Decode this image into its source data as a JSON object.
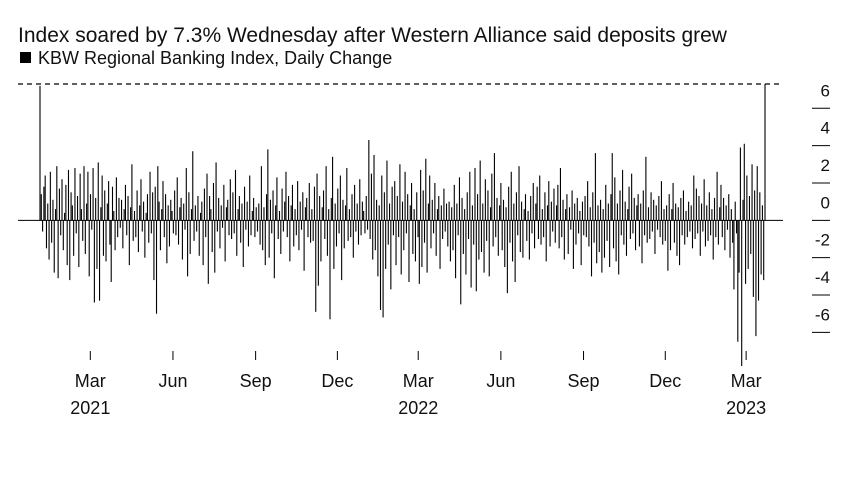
{
  "chart_data": {
    "type": "bar",
    "title": "Index soared by 7.3% Wednesday after Western Alliance said deposits grew",
    "series": [
      {
        "name": "KBW Regional Banking Index, Daily Change",
        "color": "#000000",
        "values": [
          7.2,
          1.4,
          -0.6,
          1.8,
          2.4,
          -1.5,
          0.9,
          -2.1,
          2.6,
          -1.2,
          1.1,
          -2.8,
          0.6,
          2.9,
          -3.1,
          1.7,
          -0.8,
          2.2,
          -1.6,
          0.4,
          1.9,
          -2.4,
          2.7,
          -3.2,
          1.5,
          0.8,
          -1.9,
          2.8,
          -0.7,
          1.3,
          -2.5,
          2.5,
          0.6,
          -1.1,
          2.9,
          -1.8,
          0.9,
          2.6,
          -3.0,
          1.4,
          -0.5,
          2.8,
          -4.4,
          1.2,
          -2.6,
          3.1,
          -4.3,
          0.7,
          2.4,
          -1.9,
          1.6,
          -2.2,
          0.9,
          2.1,
          -1.3,
          -3.3,
          1.8,
          0.5,
          -1.6,
          2.3,
          -0.9,
          1.2,
          -0.4,
          1.1,
          -1.5,
          0.6,
          1.9,
          -0.8,
          1.3,
          -2.4,
          0.7,
          3.0,
          -1.1,
          0.5,
          -0.9,
          1.6,
          -1.7,
          0.8,
          2.2,
          -0.6,
          1.0,
          -2.0,
          0.4,
          1.4,
          -1.2,
          2.6,
          -0.7,
          1.5,
          -3.2,
          1.8,
          -5.0,
          2.9,
          1.0,
          -1.6,
          0.6,
          2.1,
          -0.9,
          1.4,
          -2.3,
          0.8,
          -1.4,
          1.1,
          0.5,
          -0.7,
          1.6,
          -0.8,
          2.3,
          -1.3,
          0.7,
          1.2,
          -2.1,
          0.9,
          -0.5,
          2.8,
          -3.0,
          1.5,
          -1.8,
          0.6,
          3.7,
          -1.1,
          0.8,
          -0.6,
          1.3,
          -1.9,
          0.4,
          1.0,
          -2.4,
          1.7,
          -0.9,
          2.5,
          -3.4,
          1.3,
          0.6,
          -1.7,
          2.0,
          -2.8,
          3.1,
          -0.6,
          1.2,
          -1.5,
          0.8,
          -0.4,
          1.9,
          -2.2,
          0.7,
          1.1,
          -0.8,
          2.2,
          -1.0,
          1.5,
          -0.7,
          2.7,
          -1.9,
          0.6,
          1.3,
          -1.2,
          0.9,
          -2.5,
          1.8,
          -0.5,
          1.0,
          -1.4,
          2.4,
          -0.8,
          0.5,
          1.2,
          -0.9,
          0.7,
          -0.6,
          0.9,
          -1.3,
          2.9,
          -1.6,
          0.7,
          -2.4,
          1.4,
          3.8,
          -2.0,
          1.1,
          -0.7,
          1.6,
          -3.1,
          0.8,
          2.3,
          -1.0,
          0.5,
          -1.8,
          1.7,
          -0.6,
          1.0,
          2.6,
          -0.9,
          1.3,
          -2.2,
          0.8,
          1.9,
          -1.4,
          0.6,
          -0.8,
          2.1,
          -1.6,
          1.0,
          -0.5,
          1.5,
          -2.7,
          0.7,
          1.2,
          -0.9,
          2.0,
          -1.2,
          0.6,
          -1.1,
          1.8,
          -4.9,
          2.5,
          -3.5,
          1.3,
          -2.2,
          0.7,
          1.6,
          -1.0,
          2.9,
          -1.9,
          0.6,
          -5.3,
          1.2,
          3.4,
          -2.6,
          0.9,
          -1.4,
          1.7,
          -0.7,
          2.4,
          -3.2,
          1.1,
          -1.5,
          0.8,
          2.8,
          -1.1,
          0.6,
          -0.9,
          1.4,
          -2.0,
          1.9,
          -0.6,
          0.9,
          -1.3,
          2.2,
          -0.8,
          1.0,
          0.5,
          -0.7,
          1.3,
          -0.5,
          4.3,
          -1.0,
          2.5,
          -2.1,
          3.5,
          -1.6,
          1.1,
          -3.0,
          0.8,
          -4.8,
          2.4,
          -5.2,
          1.5,
          -2.6,
          3.2,
          -1.3,
          0.9,
          -3.7,
          1.8,
          -0.8,
          2.1,
          -2.4,
          1.3,
          -0.9,
          3.0,
          -2.9,
          1.0,
          -1.6,
          2.6,
          -0.7,
          1.4,
          -3.3,
          0.8,
          2.0,
          -1.8,
          0.6,
          -2.2,
          1.5,
          -0.9,
          -3.4,
          2.7,
          -2.5,
          1.6,
          -1.2,
          3.3,
          -2.8,
          0.9,
          2.4,
          -1.5,
          1.1,
          -0.7,
          2.0,
          -1.9,
          0.6,
          1.3,
          -2.6,
          0.8,
          -1.0,
          1.7,
          -0.6,
          0.9,
          -1.4,
          1.0,
          -2.2,
          0.7,
          -1.6,
          1.9,
          -3.1,
          0.9,
          -0.8,
          2.3,
          -4.5,
          1.2,
          -1.8,
          0.6,
          -2.9,
          1.5,
          -1.0,
          2.6,
          -3.6,
          0.8,
          -1.3,
          2.8,
          -3.8,
          1.4,
          -2.1,
          3.2,
          -1.7,
          0.9,
          -2.8,
          2.2,
          -1.1,
          1.6,
          -3.0,
          0.7,
          2.5,
          -1.4,
          3.6,
          -0.9,
          1.2,
          -1.9,
          0.8,
          2.0,
          -1.6,
          1.1,
          -2.5,
          0.7,
          -3.9,
          1.8,
          -1.2,
          2.6,
          -2.2,
          0.9,
          -3.3,
          1.5,
          -0.8,
          2.9,
          -1.7,
          1.0,
          -2.0,
          0.6,
          1.4,
          -1.1,
          0.5,
          -2.1,
          1.3,
          -0.7,
          2.0,
          -1.5,
          0.9,
          1.8,
          -1.0,
          2.4,
          -1.3,
          0.6,
          -0.9,
          1.5,
          -2.2,
          0.8,
          2.1,
          -1.4,
          1.0,
          -0.6,
          1.7,
          -1.2,
          0.8,
          1.9,
          -1.5,
          2.8,
          -0.9,
          1.1,
          -2.1,
          0.6,
          1.4,
          -1.8,
          0.7,
          -0.5,
          1.6,
          -2.6,
          0.9,
          -1.3,
          1.2,
          -0.7,
          0.5,
          -2.4,
          1.0,
          -0.8,
          1.3,
          -0.9,
          2.1,
          -1.4,
          0.7,
          -3.0,
          1.5,
          -1.2,
          3.6,
          -2.3,
          0.8,
          -1.7,
          1.1,
          -2.8,
          0.6,
          -2.0,
          1.9,
          -1.1,
          0.9,
          -2.5,
          1.4,
          3.6,
          -1.5,
          2.3,
          -2.2,
          0.9,
          -2.9,
          1.6,
          -0.8,
          2.7,
          -1.3,
          1.0,
          -1.9,
          0.6,
          1.8,
          -1.0,
          2.5,
          -0.7,
          1.2,
          -1.6,
          0.8,
          1.4,
          -1.4,
          0.9,
          -2.3,
          1.6,
          -0.8,
          3.4,
          -1.2,
          0.7,
          -1.0,
          1.5,
          -0.6,
          1.1,
          -1.8,
          0.8,
          -0.5,
          1.3,
          -0.9,
          2.1,
          -1.3,
          0.6,
          -1.1,
          0.8,
          -2.7,
          1.4,
          -1.6,
          0.6,
          2.0,
          -1.2,
          0.9,
          -1.9,
          0.7,
          -2.4,
          1.2,
          -0.8,
          1.6,
          -1.3,
          0.5,
          -0.9,
          1.0,
          -0.6,
          0.8,
          -1.5,
          2.4,
          -1.0,
          1.7,
          -0.7,
          1.3,
          -1.9,
          0.9,
          -0.6,
          2.2,
          -1.4,
          0.8,
          -1.1,
          1.5,
          -0.8,
          0.6,
          -2.1,
          1.2,
          -0.9,
          2.6,
          -1.3,
          0.7,
          1.9,
          -0.9,
          1.2,
          -1.6,
          0.8,
          -0.5,
          1.4,
          -2.0,
          0.6,
          -1.2,
          -3.7,
          1.0,
          -0.7,
          -6.5,
          -2.8,
          3.9,
          -7.8,
          1.1,
          4.1,
          -3.4,
          2.4,
          -2.6,
          1.3,
          -1.8,
          3.0,
          -4.1,
          1.6,
          -6.2,
          2.9,
          -4.3,
          1.5,
          -2.9,
          0.8,
          -3.2,
          7.3
        ]
      }
    ],
    "xlim": [
      "2021-01-04",
      "2023-03-22"
    ],
    "xticks": [
      {
        "value": "2021-03-01",
        "label": "Mar"
      },
      {
        "value": "2021-06-01",
        "label": "Jun"
      },
      {
        "value": "2021-09-01",
        "label": "Sep"
      },
      {
        "value": "2021-12-01",
        "label": "Dec"
      },
      {
        "value": "2022-03-01",
        "label": "Mar"
      },
      {
        "value": "2022-06-01",
        "label": "Jun"
      },
      {
        "value": "2022-09-01",
        "label": "Sep"
      },
      {
        "value": "2022-12-01",
        "label": "Dec"
      },
      {
        "value": "2023-03-01",
        "label": "Mar"
      }
    ],
    "xtick_years": [
      {
        "value": "2021-03-01",
        "label": "2021"
      },
      {
        "value": "2022-03-01",
        "label": "2022"
      },
      {
        "value": "2023-03-01",
        "label": "2023"
      }
    ],
    "ylim": [
      -7.8,
      7.3
    ],
    "yticks": [
      6,
      4,
      2,
      0,
      -2,
      -4,
      -6
    ],
    "reference_line": 7.3
  }
}
